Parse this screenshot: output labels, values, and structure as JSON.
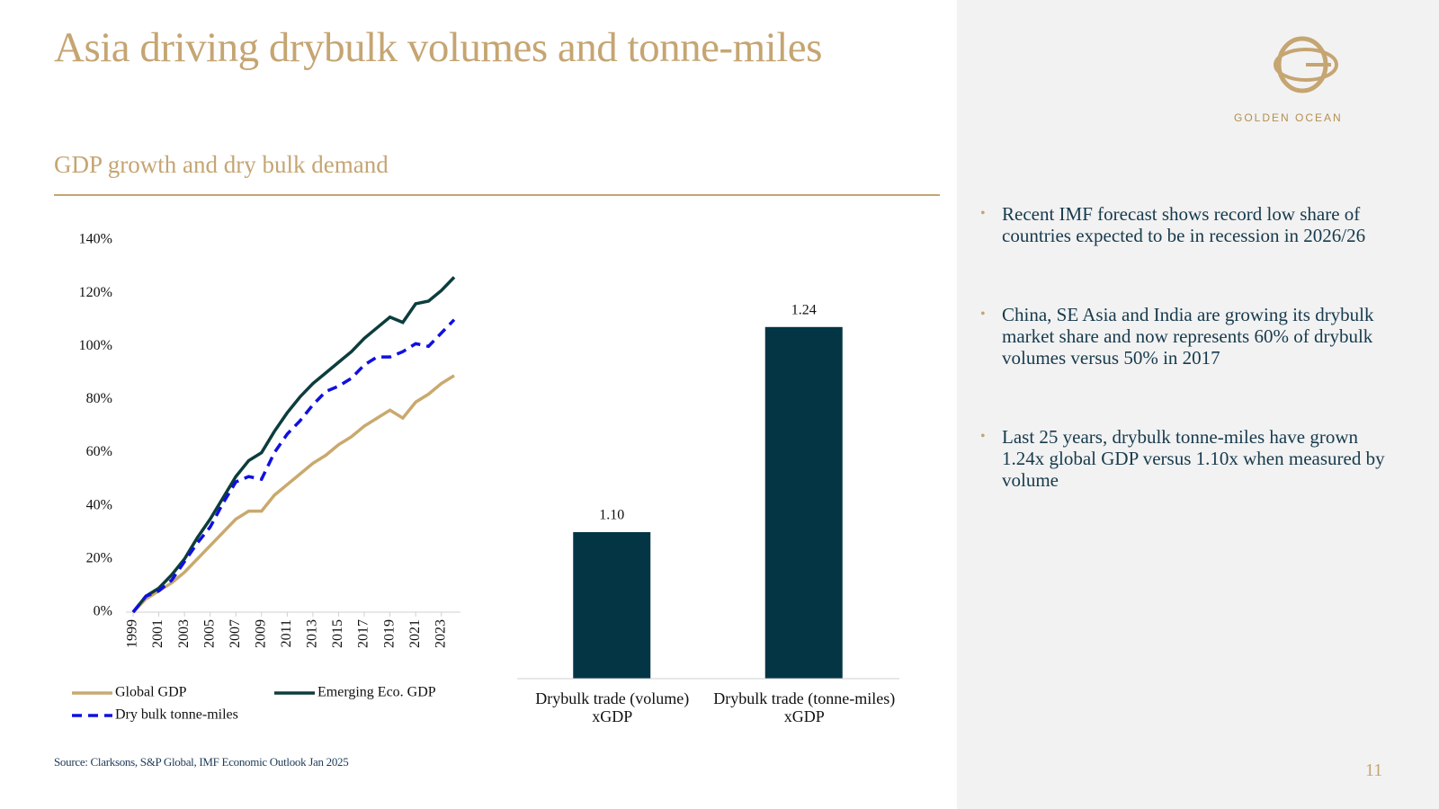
{
  "title": "Asia driving drybulk volumes and tonne-miles",
  "subtitle": "GDP growth and dry bulk demand",
  "logo_text": "GOLDEN OCEAN",
  "bullets": [
    "Recent IMF forecast shows record low share of countries expected to be in recession in 2026/26",
    "China, SE Asia and India are growing its drybulk market share and now represents 60% of drybulk volumes versus 50% in 2017",
    "Last 25 years, drybulk tonne-miles have grown 1.24x global GDP versus 1.10x when measured by volume"
  ],
  "source": "Source: Clarksons, S&P Global, IMF Economic Outlook Jan 2025",
  "page_number": "11",
  "chart_data": [
    {
      "type": "line",
      "x": [
        1999,
        2000,
        2001,
        2002,
        2003,
        2004,
        2005,
        2006,
        2007,
        2008,
        2009,
        2010,
        2011,
        2012,
        2013,
        2014,
        2015,
        2016,
        2017,
        2018,
        2019,
        2020,
        2021,
        2022,
        2023,
        2024
      ],
      "xlim": [
        1999,
        2024
      ],
      "xticks": [
        1999,
        2001,
        2003,
        2005,
        2007,
        2009,
        2011,
        2013,
        2015,
        2017,
        2019,
        2021,
        2023
      ],
      "ylim": [
        0,
        140
      ],
      "yticks": [
        {
          "value": 0,
          "label": "0%"
        },
        {
          "value": 20,
          "label": "20%"
        },
        {
          "value": 40,
          "label": "40%"
        },
        {
          "value": 60,
          "label": "60%"
        },
        {
          "value": 80,
          "label": "80%"
        },
        {
          "value": 100,
          "label": "100%"
        },
        {
          "value": 120,
          "label": "120%"
        },
        {
          "value": 140,
          "label": "140%"
        }
      ],
      "legend": "bottom",
      "series": [
        {
          "name": "Global GDP",
          "color": "#c9a96e",
          "linestyle": "solid",
          "values": [
            0,
            5,
            8,
            11,
            15,
            20,
            25,
            30,
            35,
            38,
            38,
            44,
            48,
            52,
            56,
            59,
            63,
            66,
            70,
            73,
            76,
            73,
            79,
            82,
            86,
            89
          ]
        },
        {
          "name": "Emerging Eco.  GDP",
          "color": "#0d3d3d",
          "linestyle": "solid",
          "values": [
            0,
            6,
            9,
            14,
            20,
            28,
            35,
            43,
            51,
            57,
            60,
            68,
            75,
            81,
            86,
            90,
            94,
            98,
            103,
            107,
            111,
            109,
            116,
            117,
            121,
            126
          ]
        },
        {
          "name": "Dry bulk tonne-miles",
          "color": "#1010e0",
          "linestyle": "dashed",
          "values": [
            0,
            6,
            8,
            12,
            19,
            26,
            32,
            41,
            49,
            51,
            50,
            60,
            67,
            72,
            78,
            83,
            85,
            88,
            93,
            96,
            96,
            98,
            101,
            100,
            105,
            110
          ]
        }
      ]
    },
    {
      "type": "bar",
      "categories": [
        "Drybulk trade (volume) xGDP",
        "Drybulk trade (tonne-miles) xGDP"
      ],
      "values": [
        1.1,
        1.24
      ],
      "value_labels": [
        "1.10",
        "1.24"
      ],
      "color": "#033545",
      "ylim": [
        1.0,
        1.3
      ]
    }
  ]
}
